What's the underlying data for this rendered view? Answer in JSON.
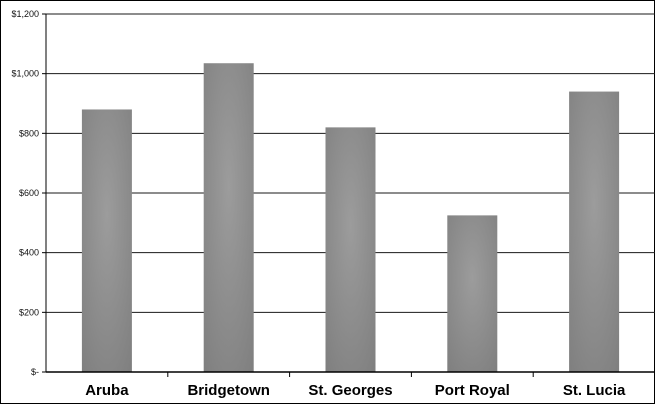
{
  "chart_data": {
    "type": "bar",
    "categories": [
      "Aruba",
      "Bridgetown",
      "St. Georges",
      "Port Royal",
      "St. Lucia"
    ],
    "values": [
      880,
      1035,
      820,
      525,
      940
    ],
    "ylim": [
      0,
      1200
    ],
    "yticks": [
      0,
      200,
      400,
      600,
      800,
      1000,
      1200
    ],
    "ytick_labels": [
      "$-",
      "$200",
      "$400",
      "$600",
      "$800",
      "$1,000",
      "$1,200"
    ],
    "grid": true,
    "legend": "none",
    "colors": {
      "bar": "#8a8a8a",
      "bar_light": "#9a9a9a",
      "grid": "#1a1a1a",
      "axis": "#000000"
    }
  }
}
